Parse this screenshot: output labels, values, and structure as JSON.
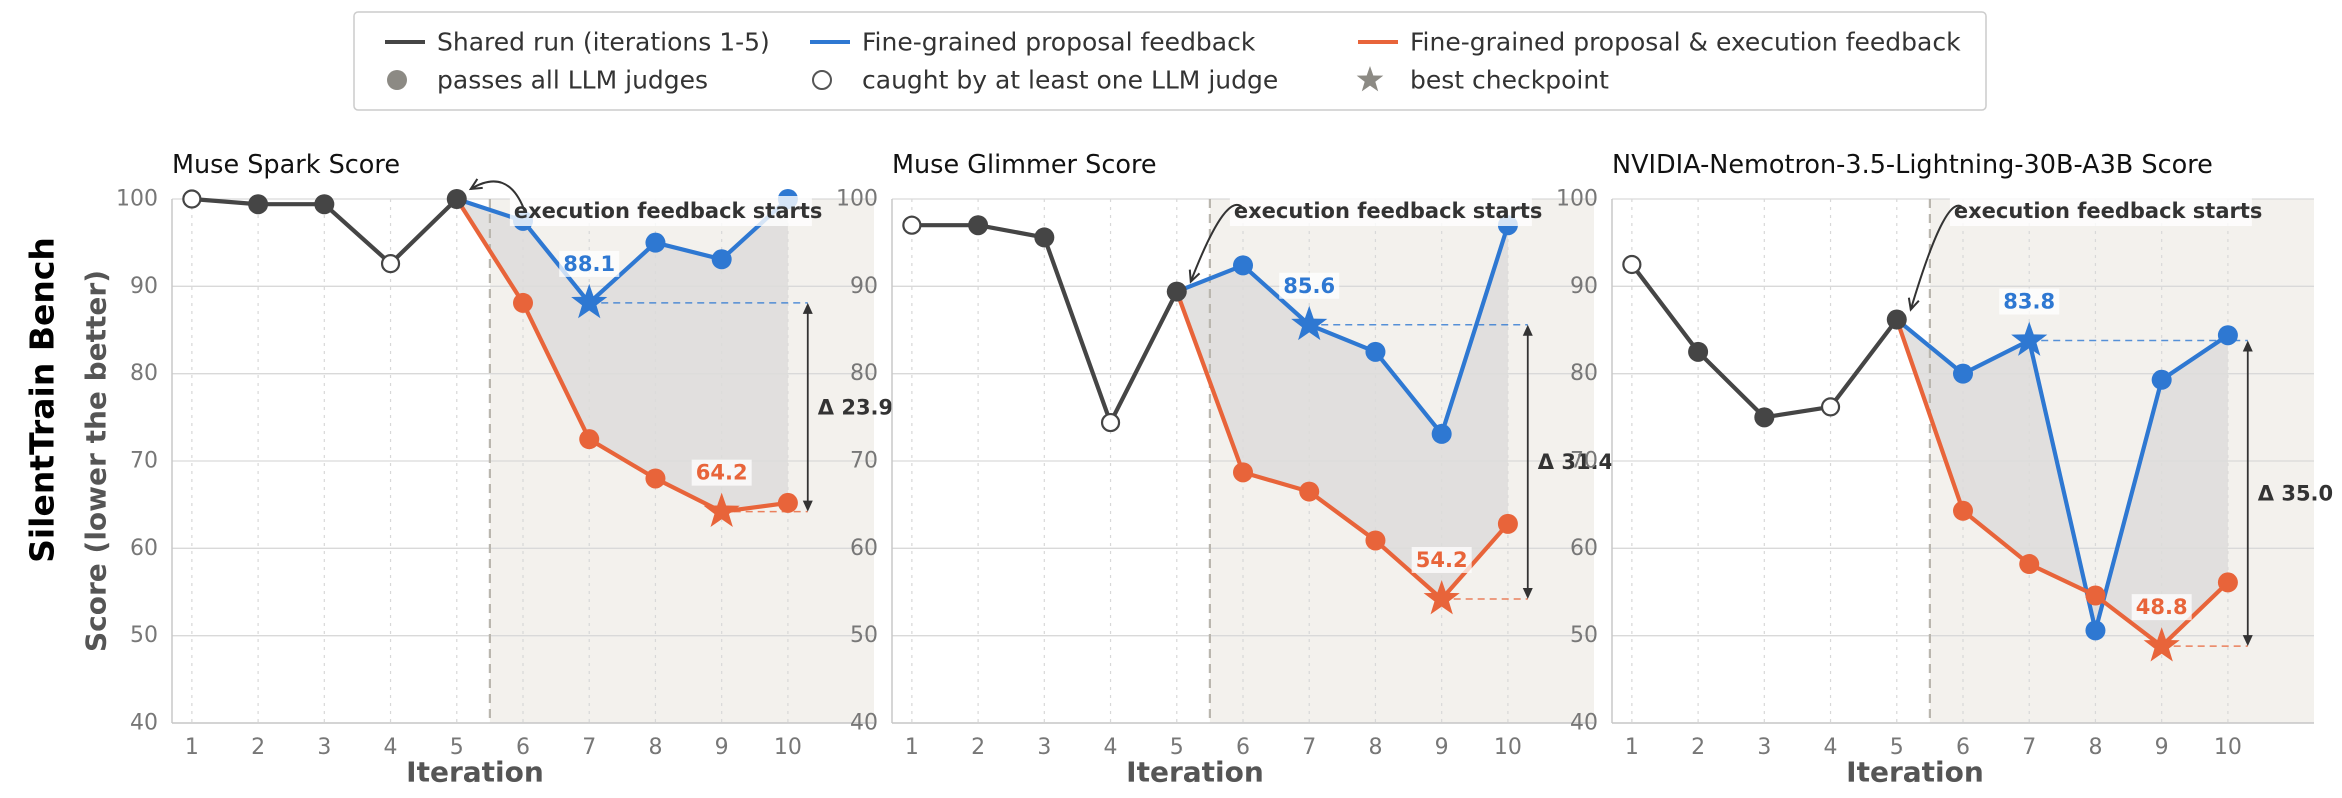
{
  "figure": {
    "suptitle_y": "SilentTrain Bench",
    "colors": {
      "shared": "#454545",
      "proposal": "#2e78d2",
      "execution": "#e8643a",
      "marker_legend": "#8c8a84",
      "shade_region": "#f3f1ed",
      "fill_between": "#dddcda",
      "grid_major": "#d9d9d9",
      "grid_minor": "#d8d8d8",
      "vline": "#b9b6ae",
      "annot": "#333333"
    }
  },
  "legend": {
    "items": [
      {
        "label": "Shared run (iterations 1-5)",
        "kind": "line",
        "color_key": "shared"
      },
      {
        "label": "Fine-grained proposal feedback",
        "kind": "line",
        "color_key": "proposal"
      },
      {
        "label": "Fine-grained proposal & execution feedback",
        "kind": "line",
        "color_key": "execution"
      },
      {
        "label": "passes all LLM judges",
        "kind": "filled-circle"
      },
      {
        "label": "caught by at least one LLM judge",
        "kind": "open-circle"
      },
      {
        "label": "best checkpoint",
        "kind": "star"
      }
    ]
  },
  "chart_data": [
    {
      "type": "line",
      "title": "Muse Spark Score",
      "xlabel": "Iteration",
      "ylabel": "Score (lower the better)",
      "x": [
        1,
        2,
        3,
        4,
        5,
        6,
        7,
        8,
        9,
        10
      ],
      "xlim": [
        0.7,
        11.3
      ],
      "ylim": [
        40,
        100
      ],
      "yticks": [
        40,
        50,
        60,
        70,
        80,
        90,
        100
      ],
      "execution_feedback_start": 5.5,
      "annotation": "execution feedback starts",
      "series": [
        {
          "name": "Shared run (iterations 1-5)",
          "color_key": "shared",
          "x": [
            1,
            2,
            3,
            4,
            5
          ],
          "y": [
            100.0,
            99.4,
            99.4,
            92.6,
            100.0
          ],
          "caught": [
            true,
            false,
            false,
            true,
            false
          ]
        },
        {
          "name": "Fine-grained proposal feedback",
          "color_key": "proposal",
          "x": [
            5,
            6,
            7,
            8,
            9,
            10
          ],
          "y": [
            100.0,
            97.5,
            88.1,
            95.0,
            93.1,
            100.0
          ],
          "caught": [
            false,
            false,
            false,
            false,
            false,
            false
          ],
          "best_x": 7,
          "best_label": "88.1"
        },
        {
          "name": "Fine-grained proposal & execution feedback",
          "color_key": "execution",
          "x": [
            5,
            6,
            7,
            8,
            9,
            10
          ],
          "y": [
            100.0,
            88.1,
            72.5,
            68.0,
            64.2,
            65.2
          ],
          "caught": [
            false,
            false,
            false,
            false,
            false,
            false
          ],
          "best_x": 9,
          "best_label": "64.2"
        }
      ],
      "delta_label": "Δ 23.9"
    },
    {
      "type": "line",
      "title": "Muse Glimmer Score",
      "xlabel": "Iteration",
      "ylabel": "",
      "x": [
        1,
        2,
        3,
        4,
        5,
        6,
        7,
        8,
        9,
        10
      ],
      "xlim": [
        0.7,
        11.3
      ],
      "ylim": [
        40,
        100
      ],
      "yticks": [
        40,
        50,
        60,
        70,
        80,
        90,
        100
      ],
      "execution_feedback_start": 5.5,
      "annotation": "execution feedback starts",
      "series": [
        {
          "name": "Shared run (iterations 1-5)",
          "color_key": "shared",
          "x": [
            1,
            2,
            3,
            4,
            5
          ],
          "y": [
            97.0,
            97.0,
            95.6,
            74.4,
            89.4
          ],
          "caught": [
            true,
            false,
            false,
            true,
            false
          ]
        },
        {
          "name": "Fine-grained proposal feedback",
          "color_key": "proposal",
          "x": [
            5,
            6,
            7,
            8,
            9,
            10
          ],
          "y": [
            89.4,
            92.4,
            85.6,
            82.5,
            73.1,
            97.0
          ],
          "caught": [
            false,
            false,
            false,
            false,
            false,
            false
          ],
          "best_x": 7,
          "best_label": "85.6"
        },
        {
          "name": "Fine-grained proposal & execution feedback",
          "color_key": "execution",
          "x": [
            5,
            6,
            7,
            8,
            9,
            10
          ],
          "y": [
            89.4,
            68.7,
            66.5,
            60.9,
            54.2,
            62.8
          ],
          "caught": [
            false,
            false,
            false,
            false,
            false,
            false
          ],
          "best_x": 9,
          "best_label": "54.2"
        }
      ],
      "delta_label": "Δ 31.4"
    },
    {
      "type": "line",
      "title": "NVIDIA-Nemotron-3.5-Lightning-30B-A3B Score",
      "xlabel": "Iteration",
      "ylabel": "",
      "x": [
        1,
        2,
        3,
        4,
        5,
        6,
        7,
        8,
        9,
        10
      ],
      "xlim": [
        0.7,
        11.3
      ],
      "ylim": [
        40,
        100
      ],
      "yticks": [
        40,
        50,
        60,
        70,
        80,
        90,
        100
      ],
      "execution_feedback_start": 5.5,
      "annotation": "execution feedback starts",
      "series": [
        {
          "name": "Shared run (iterations 1-5)",
          "color_key": "shared",
          "x": [
            1,
            2,
            3,
            4,
            5
          ],
          "y": [
            92.5,
            82.5,
            75.0,
            76.2,
            86.2
          ],
          "caught": [
            true,
            false,
            false,
            true,
            false
          ]
        },
        {
          "name": "Fine-grained proposal feedback",
          "color_key": "proposal",
          "x": [
            5,
            6,
            7,
            8,
            9,
            10
          ],
          "y": [
            86.2,
            80.0,
            83.8,
            50.6,
            79.3,
            84.4
          ],
          "caught": [
            false,
            false,
            false,
            false,
            false,
            false
          ],
          "best_x": 7,
          "best_label": "83.8"
        },
        {
          "name": "Fine-grained proposal & execution feedback",
          "color_key": "execution",
          "x": [
            5,
            6,
            7,
            8,
            9,
            10
          ],
          "y": [
            86.2,
            64.3,
            58.2,
            54.6,
            48.8,
            56.1
          ],
          "caught": [
            false,
            false,
            false,
            false,
            false,
            false
          ],
          "best_x": 9,
          "best_label": "48.8"
        }
      ],
      "delta_label": "Δ 35.0"
    }
  ]
}
